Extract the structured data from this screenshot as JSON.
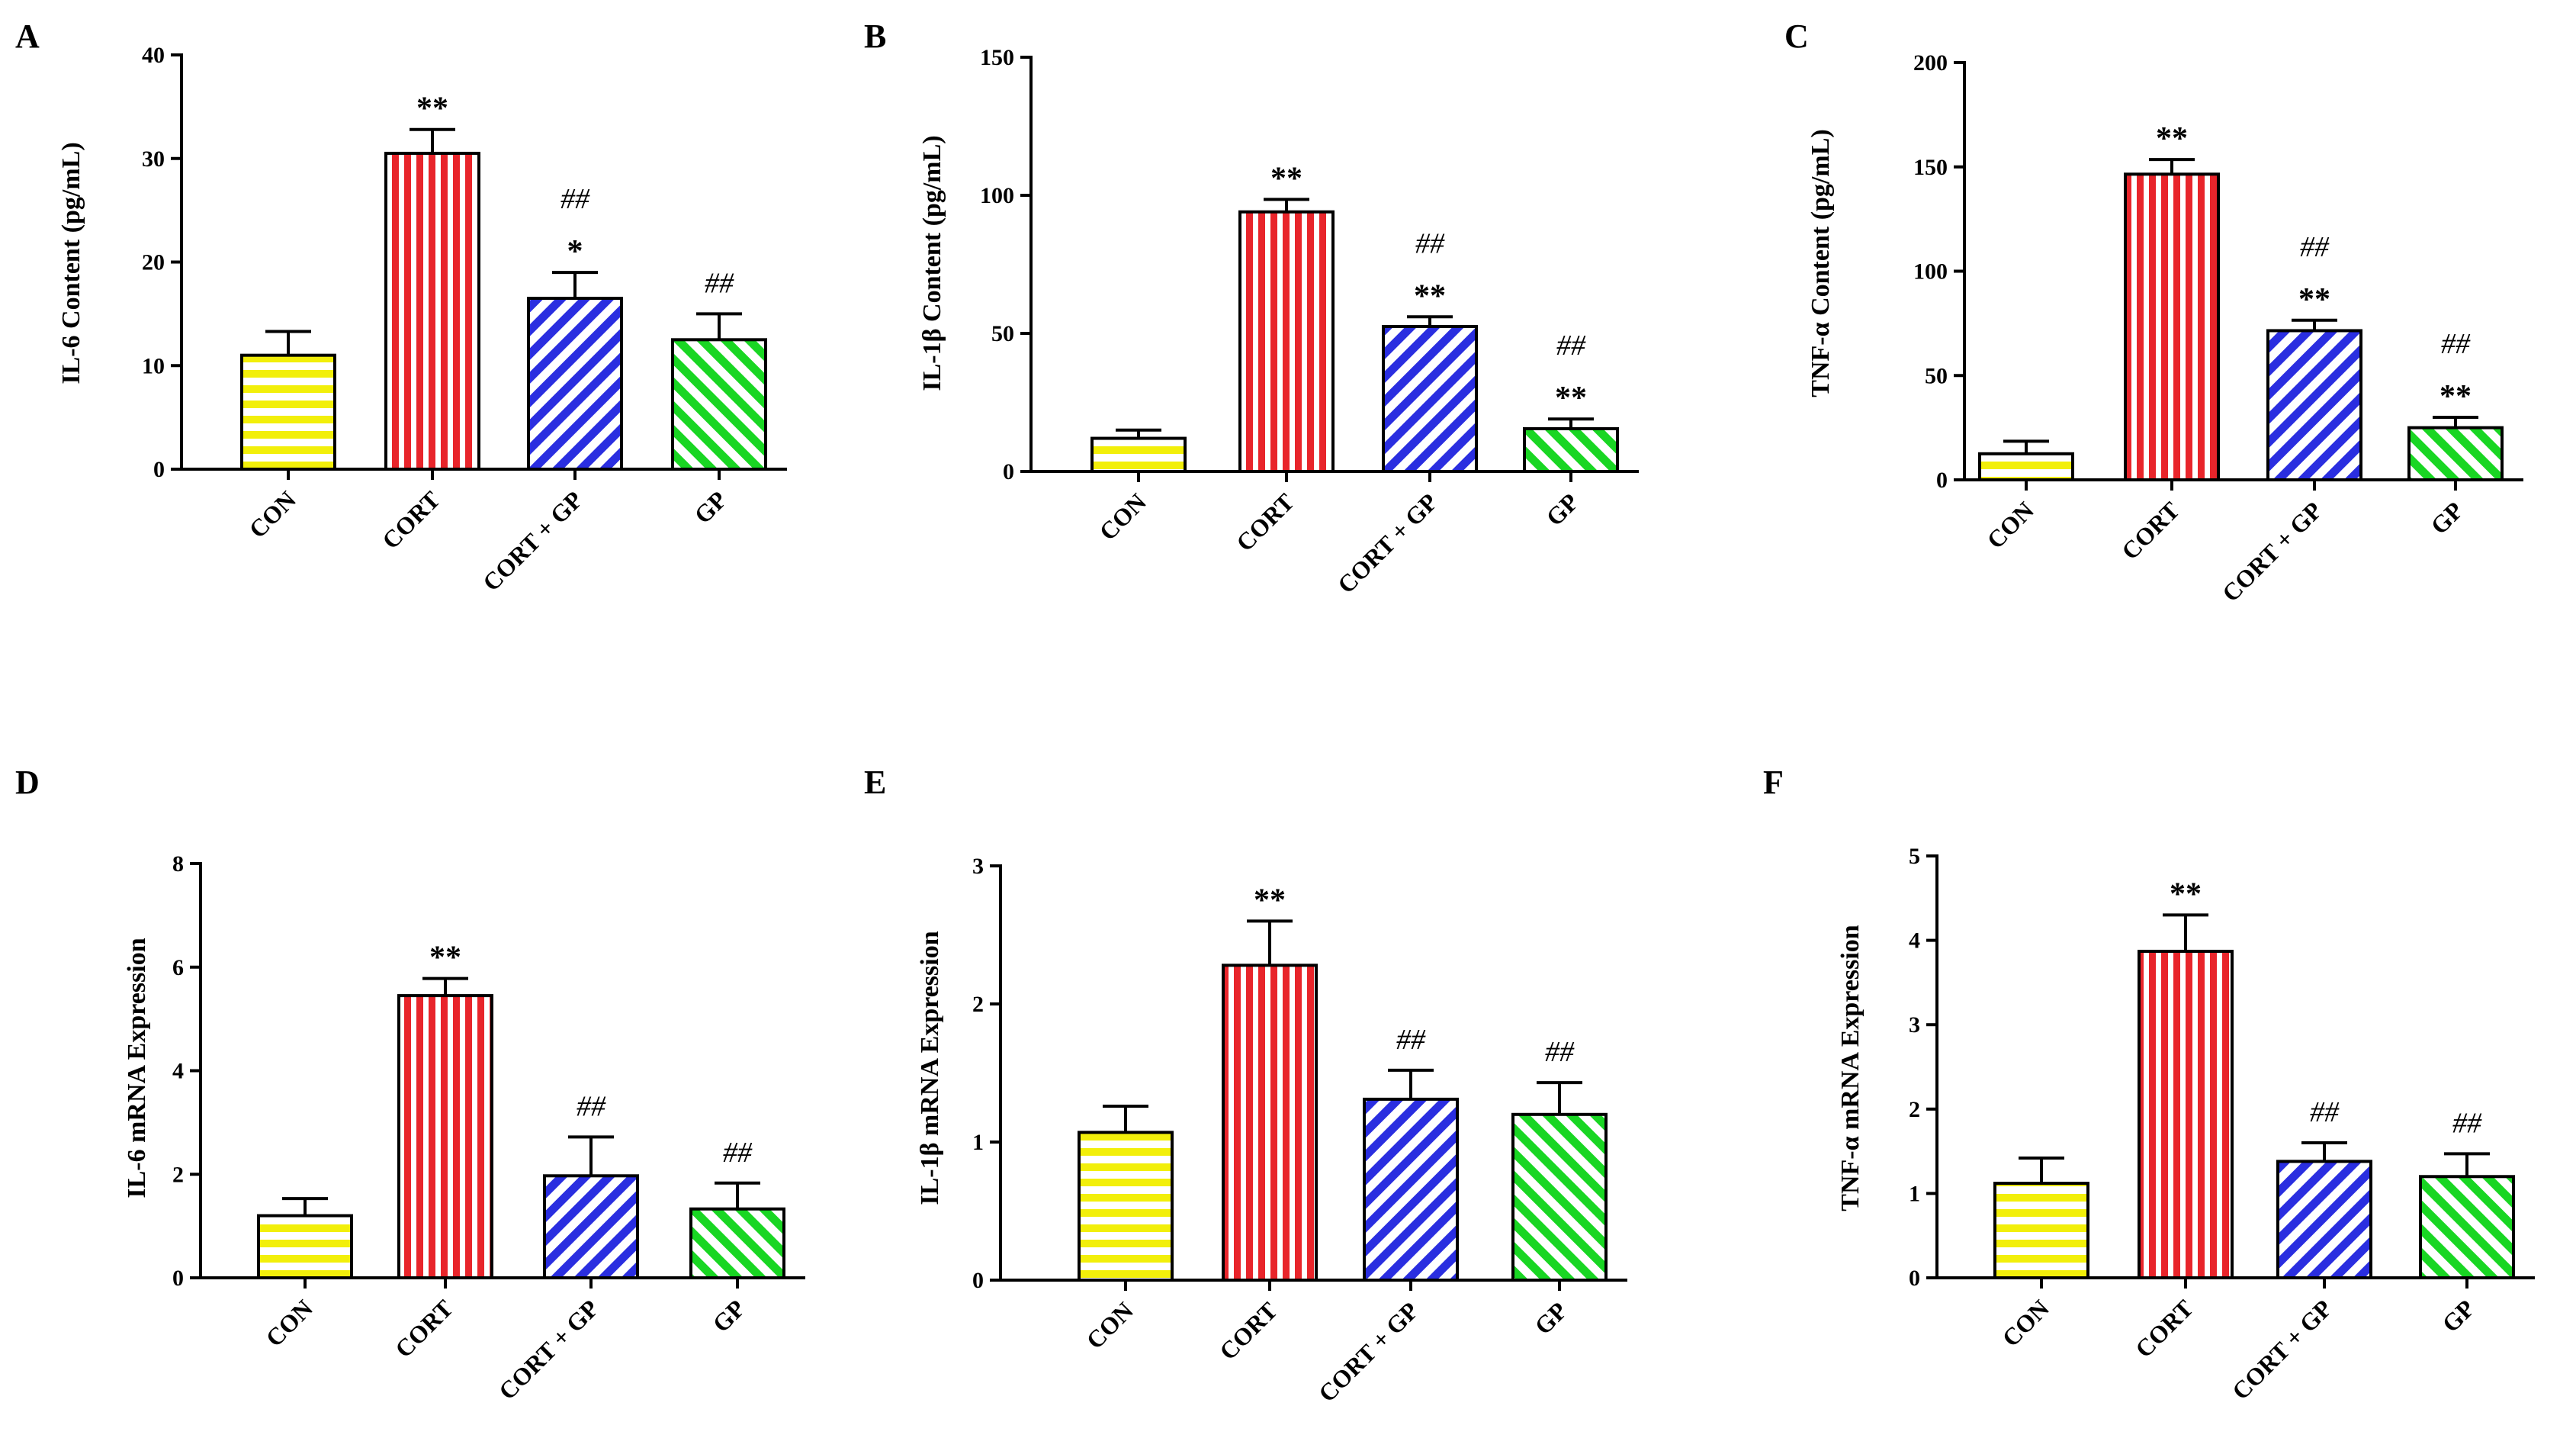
{
  "figure": {
    "groups": [
      "CON",
      "CORT",
      "CORT + GP",
      "GP"
    ],
    "colors": {
      "CON": "#f2ef0a",
      "CORT": "#e8252b",
      "CORT + GP": "#2a2ee0",
      "GP": "#19d623"
    },
    "patterns": {
      "CON": "horizontal-stripes",
      "CORT": "vertical-stripes",
      "CORT + GP": "diagonal-stripes",
      "GP": "diagonal-stripes-reversed"
    }
  },
  "chart_data": [
    {
      "panel": "A",
      "type": "bar",
      "ylabel": "IL-6 Content (pg/mL)",
      "categories": [
        "CON",
        "CORT",
        "CORT + GP",
        "GP"
      ],
      "values": [
        11,
        30.5,
        16.5,
        12.5
      ],
      "errors": [
        2.3,
        2.3,
        2.5,
        2.5
      ],
      "ylim": [
        0,
        40
      ],
      "yticks": [
        "0",
        "10",
        "20",
        "30",
        "40"
      ],
      "annotations": [
        {
          "category": "CORT",
          "lines": [
            "**"
          ]
        },
        {
          "category": "CORT + GP",
          "lines": [
            "##",
            "*"
          ]
        },
        {
          "category": "GP",
          "lines": [
            "##"
          ]
        }
      ]
    },
    {
      "panel": "B",
      "type": "bar",
      "ylabel": "IL-1β Content (pg/mL)",
      "categories": [
        "CON",
        "CORT",
        "CORT + GP",
        "GP"
      ],
      "values": [
        12,
        94,
        52.5,
        15.5
      ],
      "errors": [
        3,
        4.5,
        3.5,
        3.5
      ],
      "ylim": [
        0,
        150
      ],
      "yticks": [
        "0",
        "50",
        "100",
        "150"
      ],
      "annotations": [
        {
          "category": "CORT",
          "lines": [
            "**"
          ]
        },
        {
          "category": "CORT + GP",
          "lines": [
            "##",
            "**"
          ]
        },
        {
          "category": "GP",
          "lines": [
            "##",
            "**"
          ]
        }
      ]
    },
    {
      "panel": "C",
      "type": "bar",
      "ylabel": "TNF-α Content (pg/mL)",
      "categories": [
        "CON",
        "CORT",
        "CORT + GP",
        "GP"
      ],
      "values": [
        12.5,
        146.5,
        71.5,
        25
      ],
      "errors": [
        6,
        7,
        5,
        5
      ],
      "ylim": [
        0,
        200
      ],
      "yticks": [
        "0",
        "50",
        "100",
        "150",
        "200"
      ],
      "annotations": [
        {
          "category": "CORT",
          "lines": [
            "**"
          ]
        },
        {
          "category": "CORT + GP",
          "lines": [
            "##",
            "**"
          ]
        },
        {
          "category": "GP",
          "lines": [
            "##",
            "**"
          ]
        }
      ]
    },
    {
      "panel": "D",
      "type": "bar",
      "ylabel": "IL-6 mRNA Expression",
      "categories": [
        "CON",
        "CORT",
        "CORT + GP",
        "GP"
      ],
      "values": [
        1.2,
        5.45,
        1.97,
        1.33
      ],
      "errors": [
        0.33,
        0.33,
        0.75,
        0.5
      ],
      "ylim": [
        0,
        8
      ],
      "yticks": [
        "0",
        "2",
        "4",
        "6",
        "8"
      ],
      "annotations": [
        {
          "category": "CORT",
          "lines": [
            "**"
          ]
        },
        {
          "category": "CORT + GP",
          "lines": [
            "##"
          ]
        },
        {
          "category": "GP",
          "lines": [
            "##"
          ]
        }
      ]
    },
    {
      "panel": "E",
      "type": "bar",
      "ylabel": "IL-1β mRNA Expression",
      "categories": [
        "CON",
        "CORT",
        "CORT + GP",
        "GP"
      ],
      "values": [
        1.07,
        2.28,
        1.31,
        1.2
      ],
      "errors": [
        0.19,
        0.32,
        0.21,
        0.23
      ],
      "ylim": [
        0,
        3
      ],
      "yticks": [
        "0",
        "1",
        "2",
        "3"
      ],
      "annotations": [
        {
          "category": "CORT",
          "lines": [
            "**"
          ]
        },
        {
          "category": "CORT + GP",
          "lines": [
            "##"
          ]
        },
        {
          "category": "GP",
          "lines": [
            "##"
          ]
        }
      ]
    },
    {
      "panel": "F",
      "type": "bar",
      "ylabel": "TNF-α mRNA Expression",
      "categories": [
        "CON",
        "CORT",
        "CORT + GP",
        "GP"
      ],
      "values": [
        1.12,
        3.87,
        1.38,
        1.2
      ],
      "errors": [
        0.3,
        0.43,
        0.22,
        0.27
      ],
      "ylim": [
        0,
        5
      ],
      "yticks": [
        "0",
        "1",
        "2",
        "3",
        "4",
        "5"
      ],
      "annotations": [
        {
          "category": "CORT",
          "lines": [
            "**"
          ]
        },
        {
          "category": "CORT + GP",
          "lines": [
            "##"
          ]
        },
        {
          "category": "GP",
          "lines": [
            "##"
          ]
        }
      ]
    }
  ]
}
